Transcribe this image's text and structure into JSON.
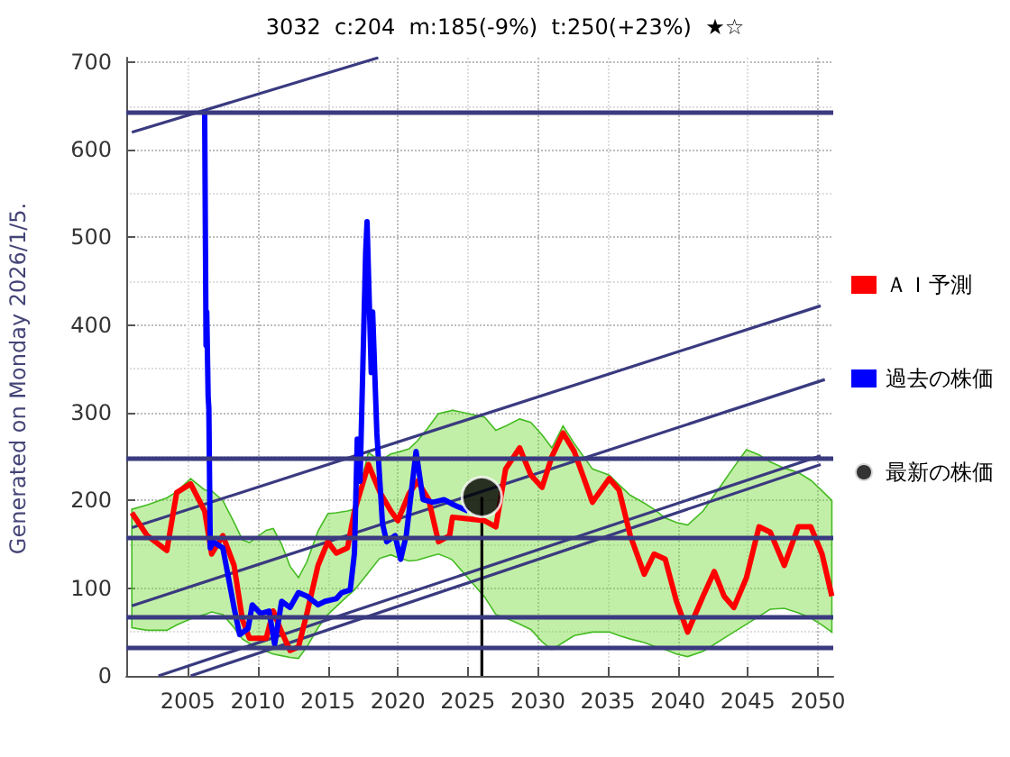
{
  "chart_data": {
    "type": "line",
    "title": "3032  c:204  m:185(-9%)  t:250(+23%)  ★☆",
    "annotations": [
      "Generated on Monday 2026/1/5."
    ],
    "xlim": [
      2000.6,
      2051.1
    ],
    "xticks": [
      2005,
      2010,
      2015,
      2020,
      2025,
      2030,
      2035,
      2040,
      2045,
      2050
    ],
    "ylim": [
      0,
      705
    ],
    "yticks": [
      0,
      100,
      200,
      300,
      400,
      500,
      600,
      700
    ],
    "grid": true,
    "legend": "right",
    "ref_lines": [
      {
        "axis": "y",
        "value": 643,
        "color": "#3a3a80"
      },
      {
        "axis": "y",
        "value": 248,
        "color": "#3a3a80"
      },
      {
        "axis": "y",
        "value": 158,
        "color": "#3a3a80"
      },
      {
        "axis": "y",
        "value": 68,
        "color": "#3a3a80"
      },
      {
        "axis": "y",
        "value": 32,
        "color": "#3a3a80"
      }
    ],
    "series": [
      {
        "type": "line",
        "color": "#3a3a80",
        "x": [
          2001,
          2018.6
        ],
        "values": [
          620,
          705
        ]
      },
      {
        "type": "line",
        "color": "#3a3a80",
        "x": [
          2001,
          2050.2
        ],
        "values": [
          169,
          422
        ]
      },
      {
        "type": "line",
        "color": "#3a3a80",
        "x": [
          2001,
          2050.5
        ],
        "values": [
          80,
          338
        ]
      },
      {
        "type": "line",
        "color": "#3a3a80",
        "x": [
          2002.9,
          2050.2
        ],
        "values": [
          0,
          251
        ]
      },
      {
        "type": "line",
        "color": "#3a3a80",
        "x": [
          2005.2,
          2050.2
        ],
        "values": [
          0,
          241
        ]
      },
      {
        "type": "line",
        "color": "#000000",
        "x": [
          2026,
          2026
        ],
        "values": [
          0,
          204
        ]
      },
      {
        "name": "ＡＩ予測",
        "type": "line",
        "color": "#ff0000",
        "x": [
          2001.0,
          2002.1,
          2003.5,
          2004.2,
          2005.2,
          2006.2,
          2006.7,
          2007.5,
          2008.3,
          2008.9,
          2009.4,
          2010.6,
          2011.1,
          2011.7,
          2012.3,
          2012.9,
          2013.5,
          2014.3,
          2015.0,
          2015.6,
          2016.4,
          2016.9,
          2017.9,
          2018.7,
          2019.5,
          2020.0,
          2020.8,
          2021.4,
          2022.2,
          2022.9,
          2023.7,
          2023.9,
          2026.2,
          2027.0,
          2027.7,
          2028.7,
          2029.5,
          2030.3,
          2031.0,
          2031.8,
          2032.6,
          2033.9,
          2035.1,
          2035.8,
          2036.6,
          2037.6,
          2038.3,
          2039.1,
          2039.9,
          2040.7,
          2041.8,
          2042.6,
          2043.3,
          2044.0,
          2044.9,
          2045.8,
          2046.6,
          2047.6,
          2048.6,
          2049.5,
          2050.3,
          2051.0
        ],
        "values": [
          186,
          160,
          143,
          209,
          219,
          188,
          139,
          160,
          126,
          64,
          43,
          43,
          74,
          50,
          29,
          33,
          71,
          126,
          153,
          140,
          146,
          188,
          241,
          210,
          188,
          177,
          208,
          222,
          201,
          153,
          160,
          181,
          177,
          170,
          236,
          260,
          229,
          215,
          250,
          277,
          256,
          198,
          225,
          212,
          160,
          116,
          139,
          133,
          85,
          50,
          91,
          119,
          91,
          78,
          112,
          170,
          164,
          126,
          170,
          170,
          139,
          91
        ],
        "lower": [
          55,
          52,
          52,
          58,
          65,
          70,
          73,
          70,
          55,
          42,
          37,
          28,
          25,
          23,
          21,
          20,
          33,
          55,
          70,
          79,
          91,
          98,
          118,
          134,
          138,
          135,
          131,
          132,
          136,
          139,
          134,
          132,
          90,
          70,
          66,
          59,
          53,
          39,
          30,
          38,
          46,
          50,
          50,
          46,
          42,
          38,
          34,
          30,
          25,
          22,
          28,
          36,
          43,
          50,
          59,
          68,
          76,
          77,
          72,
          66,
          58,
          50
        ],
        "upper": [
          190,
          195,
          203,
          210,
          225,
          212,
          211,
          200,
          175,
          155,
          152,
          166,
          168,
          150,
          125,
          112,
          130,
          165,
          185,
          186,
          188,
          190,
          255,
          245,
          253,
          255,
          259,
          268,
          284,
          299,
          302,
          303,
          295,
          280,
          285,
          293,
          289,
          275,
          260,
          285,
          265,
          236,
          229,
          218,
          206,
          197,
          190,
          180,
          175,
          172,
          188,
          206,
          222,
          238,
          258,
          252,
          244,
          237,
          232,
          223,
          211,
          200
        ]
      },
      {
        "name": "過去の株価",
        "type": "line",
        "color": "#0000ff",
        "x": [
          2006.2,
          2006.3,
          2006.35,
          2006.45,
          2006.5,
          2006.6,
          2006.8,
          2007.5,
          2008.3,
          2008.7,
          2009.3,
          2009.6,
          2010.2,
          2010.8,
          2011.2,
          2011.7,
          2012.3,
          2012.9,
          2013.5,
          2014.3,
          2014.8,
          2015.6,
          2016.0,
          2016.6,
          2016.9,
          2017.1,
          2017.3,
          2017.7,
          2017.8,
          2018.1,
          2018.2,
          2018.5,
          2018.9,
          2019.2,
          2019.8,
          2020.2,
          2020.6,
          2021.0,
          2021.3,
          2021.8,
          2022.5,
          2023.3,
          2024.0,
          2025.0
        ],
        "values": [
          645,
          377,
          415,
          318,
          305,
          146,
          153,
          146,
          78,
          47,
          54,
          81,
          71,
          74,
          36,
          85,
          78,
          95,
          91,
          81,
          85,
          88,
          95,
          98,
          140,
          270,
          222,
          483,
          518,
          346,
          415,
          277,
          174,
          153,
          160,
          133,
          160,
          215,
          256,
          201,
          198,
          201,
          195,
          188
        ]
      },
      {
        "name": "最新の株価",
        "type": "scatter",
        "color": "#000000",
        "x": [
          2026
        ],
        "values": [
          204
        ]
      }
    ]
  }
}
